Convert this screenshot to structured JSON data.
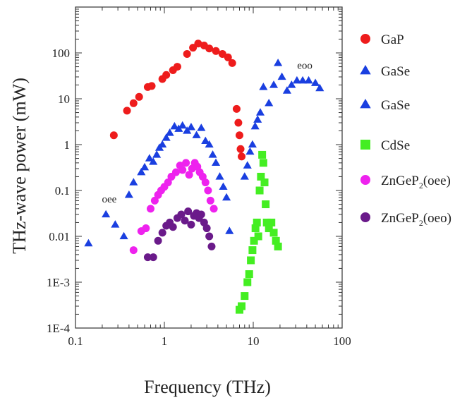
{
  "chart_data": {
    "type": "scatter",
    "title": "",
    "xlabel": "Frequency (THz)",
    "ylabel": "THz-wave power (mW)",
    "xscale": "log",
    "yscale": "log",
    "xlim": [
      0.1,
      100
    ],
    "ylim": [
      0.0001,
      1000
    ],
    "x_ticks": [
      {
        "value": 0.1,
        "label": "0.1"
      },
      {
        "value": 1,
        "label": "1"
      },
      {
        "value": 10,
        "label": "10"
      },
      {
        "value": 100,
        "label": "100"
      }
    ],
    "y_ticks": [
      {
        "value": 0.0001,
        "label": "1E-4"
      },
      {
        "value": 0.001,
        "label": "1E-3"
      },
      {
        "value": 0.01,
        "label": "0.01"
      },
      {
        "value": 0.1,
        "label": "0.1"
      },
      {
        "value": 1,
        "label": "1"
      },
      {
        "value": 10,
        "label": "10"
      },
      {
        "value": 100,
        "label": "100"
      }
    ],
    "legend_position": "right",
    "grid": false,
    "annotations": [
      {
        "text": "oee",
        "x": 0.24,
        "y": 0.055
      },
      {
        "text": "eoo",
        "x": 38,
        "y": 45
      }
    ],
    "series": [
      {
        "name": "GaP",
        "name_sub": "",
        "name_post": "",
        "marker": "circle",
        "color": "#ee1c1c",
        "points": [
          [
            0.27,
            1.6
          ],
          [
            0.38,
            5.5
          ],
          [
            0.45,
            8
          ],
          [
            0.52,
            11
          ],
          [
            0.65,
            18
          ],
          [
            0.72,
            19
          ],
          [
            0.95,
            27
          ],
          [
            1.05,
            33
          ],
          [
            1.25,
            42
          ],
          [
            1.4,
            50
          ],
          [
            1.8,
            95
          ],
          [
            2.1,
            130
          ],
          [
            2.4,
            160
          ],
          [
            2.8,
            145
          ],
          [
            3.2,
            125
          ],
          [
            3.8,
            110
          ],
          [
            4.5,
            95
          ],
          [
            5.2,
            80
          ],
          [
            5.8,
            60
          ],
          [
            6.5,
            6
          ],
          [
            6.8,
            3
          ],
          [
            7.0,
            1.6
          ],
          [
            7.2,
            0.8
          ],
          [
            7.4,
            0.55
          ]
        ]
      },
      {
        "name": "GaSe",
        "name_sub": "",
        "name_post": "",
        "marker": "triangle",
        "color": "#1a3fe0",
        "points": [
          [
            0.14,
            0.007
          ],
          [
            0.22,
            0.03
          ],
          [
            0.28,
            0.018
          ],
          [
            0.35,
            0.01
          ],
          [
            0.4,
            0.08
          ],
          [
            0.45,
            0.15
          ],
          [
            0.55,
            0.25
          ],
          [
            0.6,
            0.32
          ],
          [
            0.68,
            0.5
          ],
          [
            0.75,
            0.42
          ],
          [
            0.82,
            0.6
          ],
          [
            0.88,
            0.85
          ],
          [
            0.95,
            1.0
          ],
          [
            1.05,
            1.4
          ],
          [
            1.15,
            1.8
          ],
          [
            1.3,
            2.5
          ],
          [
            1.45,
            2.2
          ],
          [
            1.6,
            2.6
          ],
          [
            1.8,
            2.0
          ],
          [
            2.0,
            2.4
          ],
          [
            2.3,
            1.6
          ],
          [
            2.6,
            2.3
          ],
          [
            2.9,
            1.2
          ],
          [
            3.2,
            1.0
          ],
          [
            3.5,
            0.6
          ],
          [
            3.8,
            0.4
          ],
          [
            4.2,
            0.2
          ],
          [
            4.6,
            0.12
          ],
          [
            5.0,
            0.07
          ],
          [
            5.4,
            0.013
          ],
          [
            8.0,
            0.2
          ],
          [
            8.6,
            0.35
          ],
          [
            9.2,
            0.7
          ],
          [
            9.8,
            1.0
          ],
          [
            10.5,
            2.5
          ],
          [
            11.2,
            3.5
          ],
          [
            12.0,
            5
          ],
          [
            13.0,
            18
          ],
          [
            15.0,
            8
          ],
          [
            17.0,
            20
          ],
          [
            19.0,
            60
          ],
          [
            21.0,
            30
          ],
          [
            24.0,
            15
          ],
          [
            27.0,
            20
          ],
          [
            31.0,
            25
          ],
          [
            36.0,
            25
          ],
          [
            42.0,
            25
          ],
          [
            50.0,
            22
          ],
          [
            56.0,
            17
          ]
        ]
      },
      {
        "name": "GaSe",
        "name_sub": "",
        "name_post": "",
        "marker": "triangle",
        "color": "#1a3fe0",
        "points": []
      },
      {
        "name": "CdSe",
        "name_sub": "",
        "name_post": "",
        "marker": "square",
        "color": "#44ee22",
        "points": [
          [
            7.0,
            0.00025
          ],
          [
            7.4,
            0.0003
          ],
          [
            8.0,
            0.0005
          ],
          [
            8.6,
            0.001
          ],
          [
            9.0,
            0.0015
          ],
          [
            9.4,
            0.003
          ],
          [
            9.8,
            0.005
          ],
          [
            10.2,
            0.008
          ],
          [
            10.6,
            0.015
          ],
          [
            11.0,
            0.02
          ],
          [
            11.4,
            0.01
          ],
          [
            11.8,
            0.1
          ],
          [
            12.2,
            0.2
          ],
          [
            12.6,
            0.6
          ],
          [
            13.0,
            0.4
          ],
          [
            13.4,
            0.15
          ],
          [
            13.8,
            0.05
          ],
          [
            14.2,
            0.02
          ],
          [
            15.0,
            0.015
          ],
          [
            16.0,
            0.02
          ],
          [
            17.0,
            0.012
          ],
          [
            18.0,
            0.008
          ],
          [
            19.0,
            0.006
          ]
        ]
      },
      {
        "name": "ZnGeP",
        "name_sub": "2",
        "name_post": "(oee)",
        "marker": "circle",
        "color": "#ee22ee",
        "points": [
          [
            0.45,
            0.005
          ],
          [
            0.55,
            0.013
          ],
          [
            0.62,
            0.015
          ],
          [
            0.7,
            0.04
          ],
          [
            0.78,
            0.06
          ],
          [
            0.85,
            0.08
          ],
          [
            0.92,
            0.1
          ],
          [
            1.0,
            0.12
          ],
          [
            1.1,
            0.15
          ],
          [
            1.2,
            0.2
          ],
          [
            1.35,
            0.25
          ],
          [
            1.5,
            0.35
          ],
          [
            1.6,
            0.28
          ],
          [
            1.75,
            0.4
          ],
          [
            1.9,
            0.22
          ],
          [
            2.05,
            0.3
          ],
          [
            2.2,
            0.4
          ],
          [
            2.35,
            0.33
          ],
          [
            2.5,
            0.25
          ],
          [
            2.7,
            0.2
          ],
          [
            2.9,
            0.15
          ],
          [
            3.1,
            0.1
          ],
          [
            3.3,
            0.06
          ],
          [
            3.6,
            0.04
          ]
        ]
      },
      {
        "name": "ZnGeP",
        "name_sub": "2",
        "name_post": "(oeo)",
        "marker": "circle",
        "color": "#6a1a8a",
        "points": [
          [
            0.65,
            0.0035
          ],
          [
            0.75,
            0.0035
          ],
          [
            0.85,
            0.008
          ],
          [
            0.95,
            0.012
          ],
          [
            1.05,
            0.017
          ],
          [
            1.15,
            0.02
          ],
          [
            1.25,
            0.016
          ],
          [
            1.4,
            0.025
          ],
          [
            1.55,
            0.03
          ],
          [
            1.7,
            0.022
          ],
          [
            1.85,
            0.035
          ],
          [
            2.0,
            0.018
          ],
          [
            2.15,
            0.028
          ],
          [
            2.3,
            0.032
          ],
          [
            2.45,
            0.025
          ],
          [
            2.6,
            0.03
          ],
          [
            2.8,
            0.02
          ],
          [
            3.0,
            0.015
          ],
          [
            3.2,
            0.01
          ],
          [
            3.4,
            0.006
          ]
        ]
      }
    ]
  }
}
